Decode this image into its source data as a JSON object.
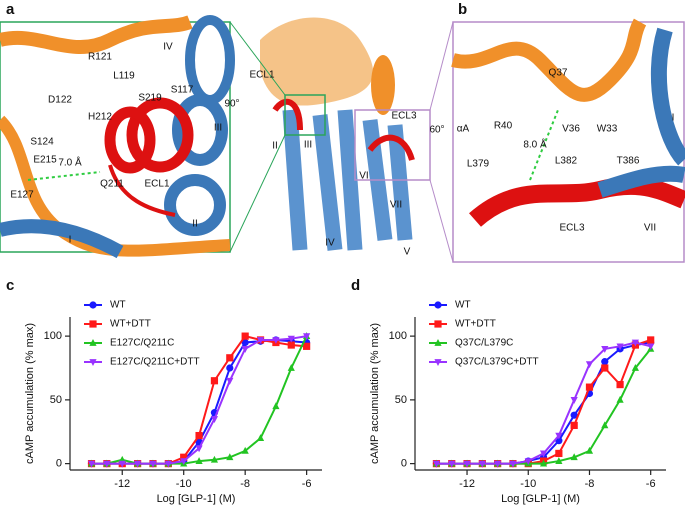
{
  "structure": {
    "panel_a": "a",
    "panel_b": "b",
    "labels_a": [
      "R121",
      "L119",
      "IV",
      "S117",
      "D122",
      "S219",
      "H212",
      "S124",
      "E215",
      "III",
      "7.0 Å",
      "E127",
      "Q211",
      "ECL1",
      "II",
      "I"
    ],
    "labels_center": [
      "ECL1",
      "90°",
      "II",
      "III",
      "ECL3",
      "60°",
      "VI",
      "VII",
      "IV",
      "V"
    ],
    "labels_b": [
      "Q37",
      "αA",
      "R40",
      "V36",
      "W33",
      "I",
      "8.0 Å",
      "L379",
      "L382",
      "T386",
      "ECL3",
      "VII"
    ]
  },
  "chart_data": [
    {
      "type": "line",
      "panel": "c",
      "x_label": "Log [GLP-1] (M)",
      "y_label": "cAMP accumulation (% max)",
      "x": [
        -13,
        -12.5,
        -12,
        -11.5,
        -11,
        -10.5,
        -10,
        -9.5,
        -9,
        -8.5,
        -8,
        -7.5,
        -7,
        -6.5,
        -6
      ],
      "xlim": [
        -13.7,
        -5.5
      ],
      "ylim": [
        -5,
        115
      ],
      "xticks": [
        -12,
        -10,
        -8,
        -6
      ],
      "yticks": [
        0,
        50,
        100
      ],
      "series": [
        {
          "name": "WT",
          "color": "#1a1aff",
          "values": [
            0,
            0,
            0,
            0,
            0,
            0,
            2,
            17,
            40,
            75,
            95,
            96,
            97,
            96,
            95
          ]
        },
        {
          "name": "WT+DTT",
          "color": "#ff1a1a",
          "values": [
            0,
            0,
            0,
            0,
            0,
            0,
            5,
            22,
            65,
            83,
            100,
            97,
            95,
            93,
            92
          ]
        },
        {
          "name": "E127C/Q211C",
          "color": "#22c422",
          "values": [
            0,
            0,
            3,
            0,
            0,
            0,
            0,
            2,
            3,
            5,
            10,
            20,
            45,
            75,
            100
          ]
        },
        {
          "name": "E127C/Q211C+DTT",
          "color": "#9933ff",
          "values": [
            0,
            0,
            0,
            0,
            0,
            0,
            2,
            12,
            35,
            65,
            90,
            97,
            97,
            98,
            100
          ]
        }
      ]
    },
    {
      "type": "line",
      "panel": "d",
      "x_label": "Log [GLP-1] (M)",
      "y_label": "cAMP accumulation (% max)",
      "x": [
        -13,
        -12.5,
        -12,
        -11.5,
        -11,
        -10.5,
        -10,
        -9.5,
        -9,
        -8.5,
        -8,
        -7.5,
        -7,
        -6.5,
        -6
      ],
      "xlim": [
        -13.7,
        -5.5
      ],
      "ylim": [
        -5,
        115
      ],
      "xticks": [
        -12,
        -10,
        -8,
        -6
      ],
      "yticks": [
        0,
        50,
        100
      ],
      "series": [
        {
          "name": "WT",
          "color": "#1a1aff",
          "values": [
            0,
            0,
            0,
            0,
            0,
            0,
            2,
            5,
            18,
            38,
            55,
            80,
            90,
            93,
            95
          ]
        },
        {
          "name": "WT+DTT",
          "color": "#ff1a1a",
          "values": [
            0,
            0,
            0,
            0,
            0,
            0,
            0,
            2,
            8,
            30,
            60,
            75,
            62,
            93,
            97
          ]
        },
        {
          "name": "Q37C/L379C",
          "color": "#22c422",
          "values": [
            0,
            0,
            0,
            0,
            0,
            0,
            0,
            0,
            2,
            5,
            10,
            30,
            50,
            75,
            90
          ]
        },
        {
          "name": "Q37C/L379C+DTT",
          "color": "#9933ff",
          "values": [
            0,
            0,
            0,
            0,
            0,
            0,
            2,
            8,
            22,
            50,
            78,
            90,
            92,
            95,
            92
          ]
        }
      ]
    }
  ]
}
